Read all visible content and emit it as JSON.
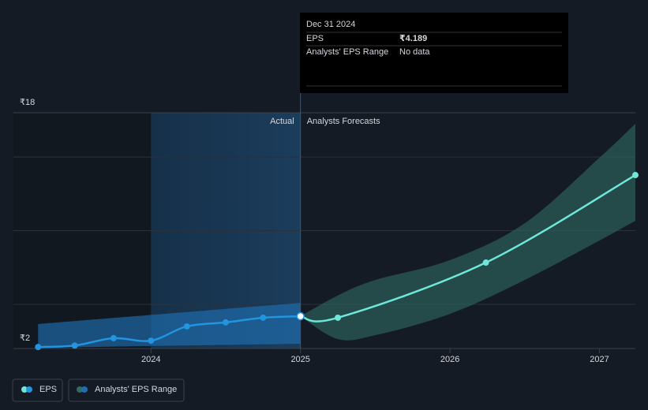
{
  "chart_data": {
    "type": "line",
    "xlim": [
      2023.08,
      2027.24
    ],
    "xticks": [
      2024,
      2025,
      2026,
      2027
    ],
    "ylim": [
      2,
      18
    ],
    "yticks": [
      {
        "value": 2,
        "label": "₹2"
      },
      {
        "value": 18,
        "label": "₹18"
      }
    ],
    "ygrid": [
      5,
      10,
      15
    ],
    "forecast_start": 2025,
    "actual_label": "Actual",
    "forecast_label": "Analysts Forecasts",
    "series": [
      {
        "name": "EPS",
        "color": "#2394df",
        "forecast_color": "#6ee7d8",
        "x": [
          2023.245,
          2023.49,
          2023.75,
          2024.0,
          2024.24,
          2024.5,
          2024.75,
          2025.0,
          2025.25,
          2026.24,
          2027.24
        ],
        "values": [
          2.1,
          2.2,
          2.7,
          2.53,
          3.5,
          3.77,
          4.09,
          4.189,
          4.09,
          7.83,
          13.77
        ]
      }
    ],
    "range": {
      "name": "Analysts' EPS Range",
      "color": "#1f6fb0",
      "forecast_color": "#2f6b64",
      "actual": {
        "x": [
          2023.245,
          2025.0
        ],
        "low": [
          2.05,
          2.32
        ],
        "high": [
          3.66,
          5.1
        ]
      },
      "forecast": {
        "x": [
          2025.0,
          2025.25,
          2025.5,
          2026.0,
          2026.5,
          2027.0,
          2027.24
        ],
        "low": [
          4.189,
          2.64,
          2.9,
          4.35,
          6.65,
          9.33,
          10.67
        ],
        "high": [
          4.189,
          5.6,
          6.65,
          8.0,
          10.5,
          14.95,
          17.25
        ]
      }
    },
    "tooltip": {
      "date": "Dec 31 2024",
      "eps_label": "EPS",
      "eps_value": "₹4.189",
      "range_label": "Analysts' EPS Range",
      "range_value": "No data"
    }
  }
}
